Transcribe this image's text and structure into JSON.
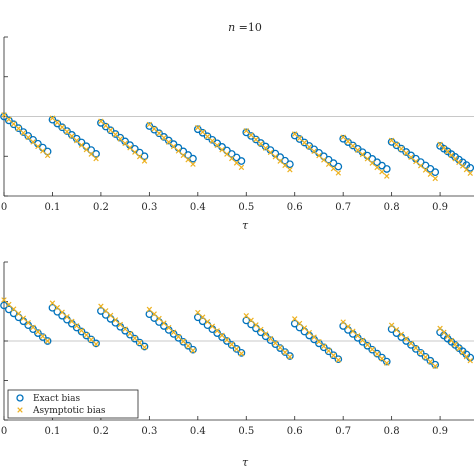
{
  "colors": {
    "exact": "#0072bd",
    "asymptotic": "#edb120",
    "axis": "#262626",
    "refline": "#c8c8c8"
  },
  "chart_data": [
    {
      "type": "scatter",
      "title": "n =10",
      "xlabel": "τ",
      "ylabel": "",
      "xlim": [
        0,
        0.97
      ],
      "ylim": [
        -1,
        1
      ],
      "reference_line": 0,
      "x_ticks": [
        0,
        0.1,
        0.2,
        0.3,
        0.4,
        0.5,
        0.6,
        0.7,
        0.8,
        0.9
      ],
      "x_tick_labels": [
        "0",
        "0.1",
        "0.2",
        "0.3",
        "0.4",
        "0.5",
        "0.6",
        "0.7",
        "0.8",
        "0.9"
      ],
      "y_ticks": [
        -1,
        -0.5,
        0,
        0.5,
        1
      ],
      "legend": false,
      "series": [
        {
          "name": "Exact bias",
          "marker": "circle",
          "segments": [
            {
              "x_start": 0.0,
              "x_end": 0.09,
              "y_start": 0.0,
              "y_end": -0.44
            },
            {
              "x_start": 0.1,
              "x_end": 0.19,
              "y_start": -0.04,
              "y_end": -0.47
            },
            {
              "x_start": 0.2,
              "x_end": 0.29,
              "y_start": -0.08,
              "y_end": -0.5
            },
            {
              "x_start": 0.3,
              "x_end": 0.39,
              "y_start": -0.12,
              "y_end": -0.53
            },
            {
              "x_start": 0.4,
              "x_end": 0.49,
              "y_start": -0.16,
              "y_end": -0.56
            },
            {
              "x_start": 0.5,
              "x_end": 0.59,
              "y_start": -0.2,
              "y_end": -0.6
            },
            {
              "x_start": 0.6,
              "x_end": 0.69,
              "y_start": -0.24,
              "y_end": -0.63
            },
            {
              "x_start": 0.7,
              "x_end": 0.79,
              "y_start": -0.28,
              "y_end": -0.66
            },
            {
              "x_start": 0.8,
              "x_end": 0.89,
              "y_start": -0.32,
              "y_end": -0.7
            },
            {
              "x_start": 0.9,
              "x_end": 0.97,
              "y_start": -0.37,
              "y_end": -0.68
            }
          ]
        },
        {
          "name": "Asymptotic bias",
          "marker": "x",
          "segments": [
            {
              "x_start": 0.0,
              "x_end": 0.09,
              "y_start": 0.02,
              "y_end": -0.49
            },
            {
              "x_start": 0.1,
              "x_end": 0.19,
              "y_start": -0.02,
              "y_end": -0.53
            },
            {
              "x_start": 0.2,
              "x_end": 0.29,
              "y_start": -0.06,
              "y_end": -0.56
            },
            {
              "x_start": 0.3,
              "x_end": 0.39,
              "y_start": -0.1,
              "y_end": -0.6
            },
            {
              "x_start": 0.4,
              "x_end": 0.49,
              "y_start": -0.14,
              "y_end": -0.64
            },
            {
              "x_start": 0.5,
              "x_end": 0.59,
              "y_start": -0.18,
              "y_end": -0.67
            },
            {
              "x_start": 0.6,
              "x_end": 0.69,
              "y_start": -0.22,
              "y_end": -0.71
            },
            {
              "x_start": 0.7,
              "x_end": 0.79,
              "y_start": -0.26,
              "y_end": -0.75
            },
            {
              "x_start": 0.8,
              "x_end": 0.89,
              "y_start": -0.3,
              "y_end": -0.78
            },
            {
              "x_start": 0.9,
              "x_end": 0.97,
              "y_start": -0.35,
              "y_end": -0.76
            }
          ]
        }
      ]
    },
    {
      "type": "scatter",
      "title": "",
      "xlabel": "τ",
      "ylabel": "",
      "xlim": [
        0,
        0.97
      ],
      "ylim": [
        -1,
        1
      ],
      "reference_line": 0,
      "x_ticks": [
        0,
        0.1,
        0.2,
        0.3,
        0.4,
        0.5,
        0.6,
        0.7,
        0.8,
        0.9
      ],
      "x_tick_labels": [
        "0",
        "0.1",
        "0.2",
        "0.3",
        "0.4",
        "0.5",
        "0.6",
        "0.7",
        "0.8",
        "0.9"
      ],
      "y_ticks": [
        -1,
        -0.5,
        0,
        0.5,
        1
      ],
      "legend": true,
      "legend_position": "bottom-left",
      "series": [
        {
          "name": "Exact bias",
          "marker": "circle",
          "segments": [
            {
              "x_start": 0.0,
              "x_end": 0.09,
              "y_start": 0.45,
              "y_end": 0.0
            },
            {
              "x_start": 0.1,
              "x_end": 0.19,
              "y_start": 0.42,
              "y_end": -0.03
            },
            {
              "x_start": 0.2,
              "x_end": 0.29,
              "y_start": 0.38,
              "y_end": -0.07
            },
            {
              "x_start": 0.3,
              "x_end": 0.39,
              "y_start": 0.34,
              "y_end": -0.11
            },
            {
              "x_start": 0.4,
              "x_end": 0.49,
              "y_start": 0.3,
              "y_end": -0.15
            },
            {
              "x_start": 0.5,
              "x_end": 0.59,
              "y_start": 0.26,
              "y_end": -0.19
            },
            {
              "x_start": 0.6,
              "x_end": 0.69,
              "y_start": 0.22,
              "y_end": -0.23
            },
            {
              "x_start": 0.7,
              "x_end": 0.79,
              "y_start": 0.19,
              "y_end": -0.26
            },
            {
              "x_start": 0.8,
              "x_end": 0.89,
              "y_start": 0.15,
              "y_end": -0.3
            },
            {
              "x_start": 0.9,
              "x_end": 0.97,
              "y_start": 0.11,
              "y_end": -0.25
            }
          ]
        },
        {
          "name": "Asymptotic bias",
          "marker": "x",
          "segments": [
            {
              "x_start": 0.0,
              "x_end": 0.09,
              "y_start": 0.52,
              "y_end": 0.0
            },
            {
              "x_start": 0.1,
              "x_end": 0.19,
              "y_start": 0.48,
              "y_end": -0.04
            },
            {
              "x_start": 0.2,
              "x_end": 0.29,
              "y_start": 0.44,
              "y_end": -0.08
            },
            {
              "x_start": 0.3,
              "x_end": 0.39,
              "y_start": 0.4,
              "y_end": -0.12
            },
            {
              "x_start": 0.4,
              "x_end": 0.49,
              "y_start": 0.36,
              "y_end": -0.16
            },
            {
              "x_start": 0.5,
              "x_end": 0.59,
              "y_start": 0.32,
              "y_end": -0.2
            },
            {
              "x_start": 0.6,
              "x_end": 0.69,
              "y_start": 0.28,
              "y_end": -0.24
            },
            {
              "x_start": 0.7,
              "x_end": 0.79,
              "y_start": 0.24,
              "y_end": -0.28
            },
            {
              "x_start": 0.8,
              "x_end": 0.89,
              "y_start": 0.2,
              "y_end": -0.32
            },
            {
              "x_start": 0.9,
              "x_end": 0.97,
              "y_start": 0.16,
              "y_end": -0.3
            }
          ]
        }
      ]
    }
  ]
}
